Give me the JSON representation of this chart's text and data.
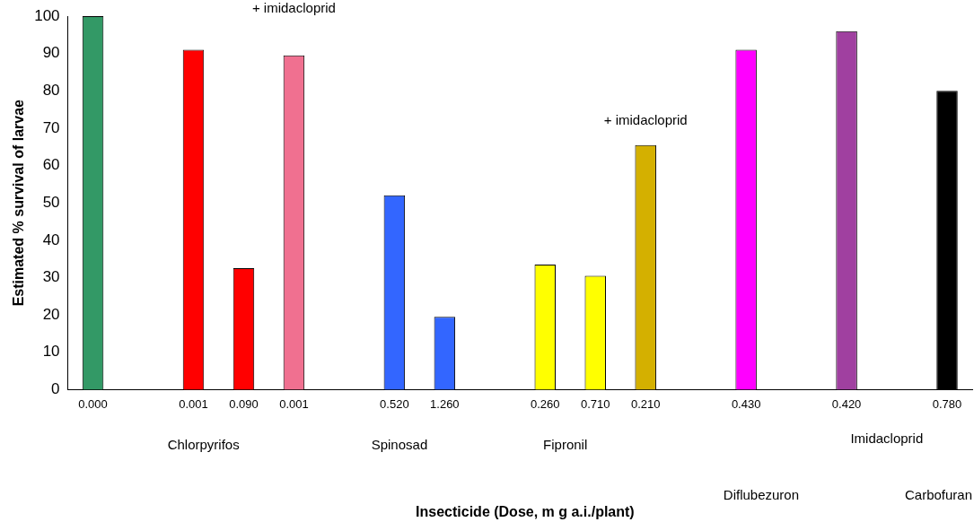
{
  "chart_data": {
    "type": "bar",
    "ylabel": "Estimated % survival of larvae",
    "categories": [
      "0.000",
      null,
      "0.001",
      "0.090",
      "0.001",
      null,
      "0.520",
      "1.260",
      null,
      "0.260",
      "0.710",
      "0.210",
      null,
      "0.430",
      null,
      "0.420",
      null,
      "0.780"
    ],
    "values": [
      100,
      null,
      91,
      32.5,
      89.5,
      null,
      52,
      19.5,
      null,
      33.5,
      30.5,
      65.5,
      null,
      91,
      null,
      96,
      null,
      80
    ],
    "colors": [
      "#339966",
      "#ffffff",
      "#ff0000",
      "#ff0000",
      "#f07090",
      "#ffffff",
      "#3366ff",
      "#3366ff",
      "#ffffff",
      "#ffff00",
      "#ffff00",
      "#d4b000",
      "#ffffff",
      "#ff00ff",
      "#ffffff",
      "#a040a0",
      "#ffffff",
      "#000000"
    ],
    "ylim": [
      0,
      100
    ],
    "yticks": [
      0,
      10,
      20,
      30,
      40,
      50,
      60,
      70,
      80,
      90,
      100
    ],
    "grid": false,
    "legend": false,
    "annotations": [
      "+ imidacloprid",
      "+ imidacloprid",
      "Chlorpyrifos",
      "Spinosad",
      "Fipronil",
      "Imidacloprid",
      "Diflubezuron",
      "Carbofuran",
      "Insecticide (Dose, m g a.i./plant)"
    ]
  }
}
